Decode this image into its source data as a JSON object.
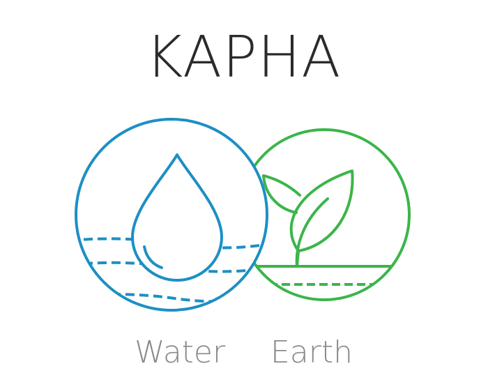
{
  "title": "KAPHA",
  "elements": [
    {
      "label": "Water",
      "color": "#1d8fc4",
      "icon": "water-drop-icon"
    },
    {
      "label": "Earth",
      "color": "#3bb54a",
      "icon": "leaf-sprout-icon"
    }
  ]
}
